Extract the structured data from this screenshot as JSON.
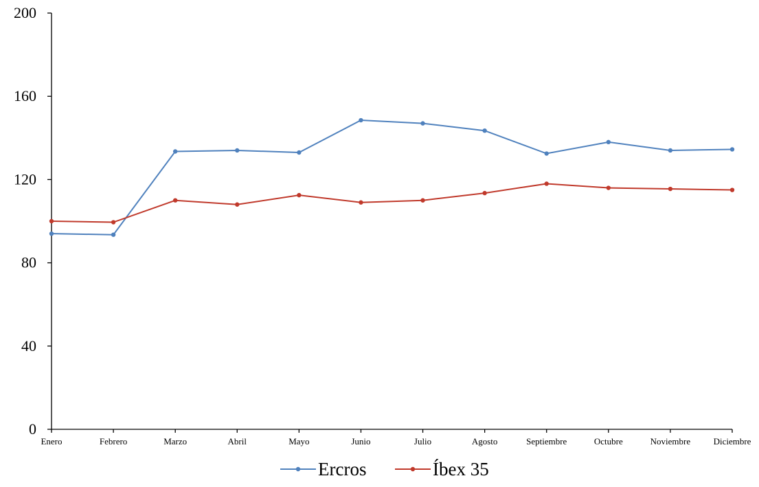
{
  "chart_data": {
    "type": "line",
    "title": "",
    "xlabel": "",
    "ylabel": "",
    "categories": [
      "Enero",
      "Febrero",
      "Marzo",
      "Abril",
      "Mayo",
      "Junio",
      "Julio",
      "Agosto",
      "Septiembre",
      "Octubre",
      "Noviembre",
      "Diciembre"
    ],
    "ylim": [
      0,
      200
    ],
    "yticks": [
      "0",
      "40",
      "80",
      "120",
      "160",
      "200"
    ],
    "grid": false,
    "legend_position": "bottom-center",
    "series": [
      {
        "name": "Ercros",
        "color": "#4F81BD",
        "values": [
          94,
          93.5,
          133.5,
          134,
          133,
          148.5,
          147,
          143.5,
          132.5,
          138,
          134,
          134.5
        ]
      },
      {
        "name": "Íbex 35",
        "color": "#C0392B",
        "values": [
          100,
          99.5,
          110,
          108,
          112.5,
          109,
          110,
          113.5,
          118,
          116,
          115.5,
          115
        ]
      }
    ]
  }
}
